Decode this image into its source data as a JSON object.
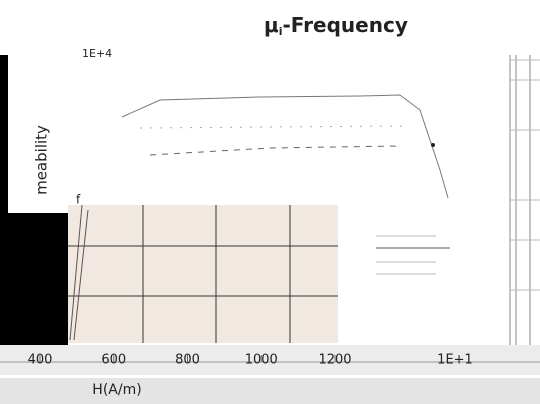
{
  "chart_data": {
    "type": "line",
    "title_main": "μ",
    "title_sub": "i",
    "title_rest": "-Frequency",
    "y_label": "meability",
    "y_top_label": "1E+4",
    "y_mid_label": "f",
    "x_label": "H(A/m)",
    "xlim": [
      400,
      1200
    ],
    "xticks": [
      400,
      600,
      800,
      1000,
      1200
    ],
    "x2_tick_label": "1E+1"
  }
}
